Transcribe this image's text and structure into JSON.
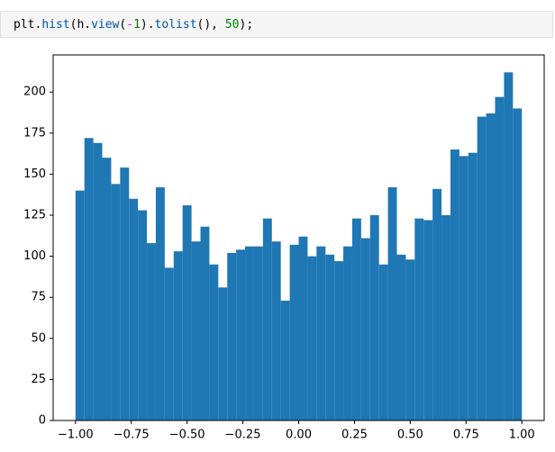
{
  "code": {
    "tokens": [
      {
        "text": "plt",
        "color": "#000000"
      },
      {
        "text": ".",
        "color": "#000000"
      },
      {
        "text": "hist",
        "color": "#0055aa"
      },
      {
        "text": "(",
        "color": "#000000"
      },
      {
        "text": "h",
        "color": "#000000"
      },
      {
        "text": ".",
        "color": "#000000"
      },
      {
        "text": "view",
        "color": "#0055aa"
      },
      {
        "text": "(",
        "color": "#000000"
      },
      {
        "text": "-",
        "color": "#aa22ff"
      },
      {
        "text": "1",
        "color": "#008000"
      },
      {
        "text": ").",
        "color": "#000000"
      },
      {
        "text": "tolist",
        "color": "#0055aa"
      },
      {
        "text": "(), ",
        "color": "#000000"
      },
      {
        "text": "50",
        "color": "#008000"
      },
      {
        "text": ");",
        "color": "#000000"
      }
    ]
  },
  "chart_data": {
    "type": "histogram",
    "color": "#1f77b4",
    "bins": [
      -1,
      -0.96,
      -0.92,
      -0.88,
      -0.84,
      -0.8,
      -0.76,
      -0.72,
      -0.68,
      -0.64,
      -0.6,
      -0.56,
      -0.52,
      -0.48,
      -0.44,
      -0.4,
      -0.36,
      -0.32,
      -0.28,
      -0.24,
      -0.2,
      -0.16,
      -0.12,
      -0.08,
      -0.04,
      0,
      0.04,
      0.08,
      0.12,
      0.16,
      0.2,
      0.24,
      0.28,
      0.32,
      0.36,
      0.4,
      0.44,
      0.48,
      0.52,
      0.56,
      0.6,
      0.64,
      0.68,
      0.72,
      0.76,
      0.8,
      0.84,
      0.88,
      0.92,
      0.96,
      1
    ],
    "counts": [
      140,
      172,
      169,
      160,
      144,
      154,
      135,
      128,
      108,
      142,
      93,
      103,
      131,
      109,
      118,
      95,
      81,
      102,
      104,
      106,
      106,
      123,
      109,
      73,
      107,
      112,
      100,
      106,
      101,
      97,
      106,
      123,
      111,
      125,
      95,
      142,
      101,
      98,
      123,
      122,
      141,
      125,
      165,
      161,
      163,
      185,
      187,
      197,
      212,
      190
    ],
    "xlim": [
      -1.1,
      1.1
    ],
    "ylim": [
      0,
      222.6
    ],
    "xticks": [
      {
        "value": -1,
        "label": "−1.00"
      },
      {
        "value": -0.75,
        "label": "−0.75"
      },
      {
        "value": -0.5,
        "label": "−0.50"
      },
      {
        "value": -0.25,
        "label": "−0.25"
      },
      {
        "value": 0,
        "label": "0.00"
      },
      {
        "value": 0.25,
        "label": "0.25"
      },
      {
        "value": 0.5,
        "label": "0.50"
      },
      {
        "value": 0.75,
        "label": "0.75"
      },
      {
        "value": 1,
        "label": "1.00"
      }
    ],
    "yticks": [
      0,
      25,
      50,
      75,
      100,
      125,
      150,
      175,
      200
    ]
  }
}
